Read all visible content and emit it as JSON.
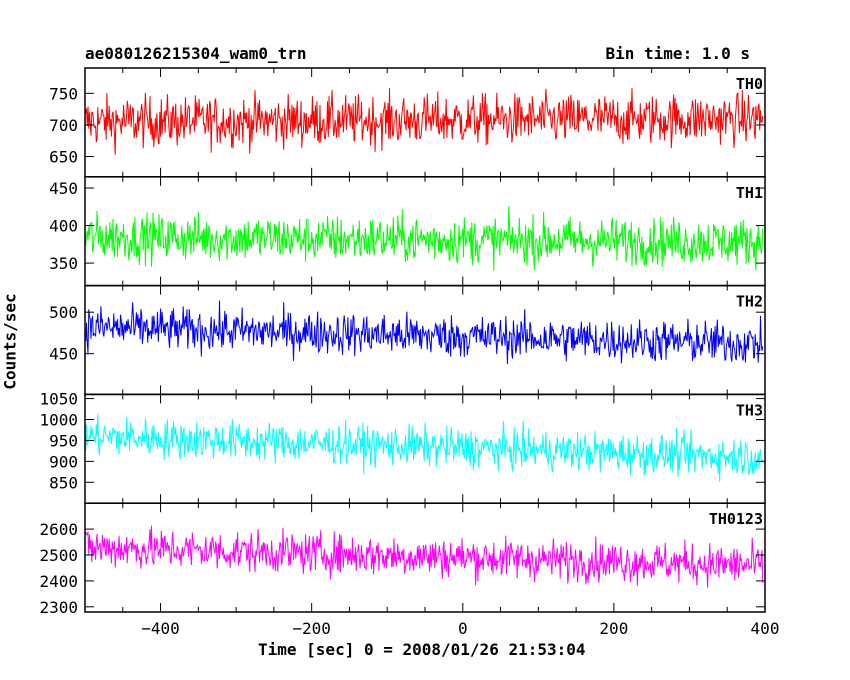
{
  "title_left": "ae080126215304_wam0_trn",
  "title_right": "Bin time: 1.0 s",
  "ylabel": "Counts/sec",
  "xlabel": "Time [sec] 0 = 2008/01/26 21:53:04",
  "chart_data": {
    "type": "line",
    "x_range": [
      -500,
      400
    ],
    "x_ticks": [
      -400,
      -200,
      0,
      200,
      400
    ],
    "x_minor_step": 50,
    "bin_time_s": 1.0,
    "panels": [
      {
        "name": "TH0",
        "color": "#ff0000",
        "ylim": [
          618,
          790
        ],
        "y_ticks": [
          650,
          700,
          750
        ],
        "y_tick_labels": [
          "650",
          "700",
          "750"
        ],
        "mean_start": 705,
        "mean_end": 710,
        "noise": 28
      },
      {
        "name": "TH1",
        "color": "#00ff00",
        "ylim": [
          320,
          465
        ],
        "y_ticks": [
          350,
          400,
          450
        ],
        "y_tick_labels": [
          "350",
          "400",
          "450"
        ],
        "mean_start": 385,
        "mean_end": 378,
        "noise": 22
      },
      {
        "name": "TH2",
        "color": "#0000ff",
        "ylim": [
          401,
          532
        ],
        "y_ticks": [
          450,
          500
        ],
        "y_tick_labels": [
          "450",
          "500"
        ],
        "mean_start": 482,
        "mean_end": 462,
        "noise": 18
      },
      {
        "name": "TH3",
        "color": "#00ffff",
        "ylim": [
          800,
          1060
        ],
        "y_ticks": [
          850,
          900,
          950,
          1000,
          1050
        ],
        "y_tick_labels": [
          "850",
          "900",
          "950",
          "1000",
          "1050"
        ],
        "mean_start": 960,
        "mean_end": 910,
        "noise": 33
      },
      {
        "name": "TH0123",
        "color": "#ff00ff",
        "ylim": [
          2280,
          2700
        ],
        "y_ticks": [
          2300,
          2400,
          2500,
          2600
        ],
        "y_tick_labels": [
          "2300",
          "2400",
          "2500",
          "2600"
        ],
        "mean_start": 2530,
        "mean_end": 2460,
        "noise": 55
      }
    ]
  }
}
